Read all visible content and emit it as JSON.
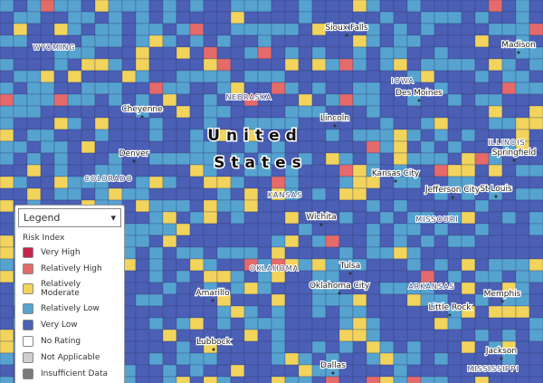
{
  "map": {
    "title_lines": [
      "United",
      "States"
    ],
    "states": [
      "WYOMING",
      "NEBRASKA",
      "IOWA",
      "ILLINOIS",
      "COLORADO",
      "KANSAS",
      "MISSOURI",
      "OKLAHOMA",
      "ARKANSAS",
      "MISSISSIPPI"
    ],
    "cities": [
      "Sioux Falls",
      "Madison",
      "Des Moines",
      "Cheyenne",
      "Lincoln",
      "Denver",
      "Kansas City",
      "Springfield",
      "Jefferson City",
      "St Louis",
      "Wichita",
      "Tulsa",
      "Oklahoma City",
      "Amarillo",
      "Memphis",
      "Little Rock",
      "Lubbock",
      "Dallas",
      "Jackson"
    ]
  },
  "legend": {
    "title": "Legend",
    "subtitle": "Risk Index",
    "items": [
      {
        "label": "Very High",
        "color": "#c8254a"
      },
      {
        "label": "Relatively High",
        "color": "#e56a6a"
      },
      {
        "label": "Relatively Moderate",
        "color": "#f2d45c"
      },
      {
        "label": "Relatively Low",
        "color": "#56a3d0"
      },
      {
        "label": "Very Low",
        "color": "#4b5fb5"
      },
      {
        "label": "No Rating",
        "color": "#ffffff"
      },
      {
        "label": "Not Applicable",
        "color": "#cfcfcf"
      },
      {
        "label": "Insufficient Data",
        "color": "#7b7b7b"
      }
    ]
  }
}
